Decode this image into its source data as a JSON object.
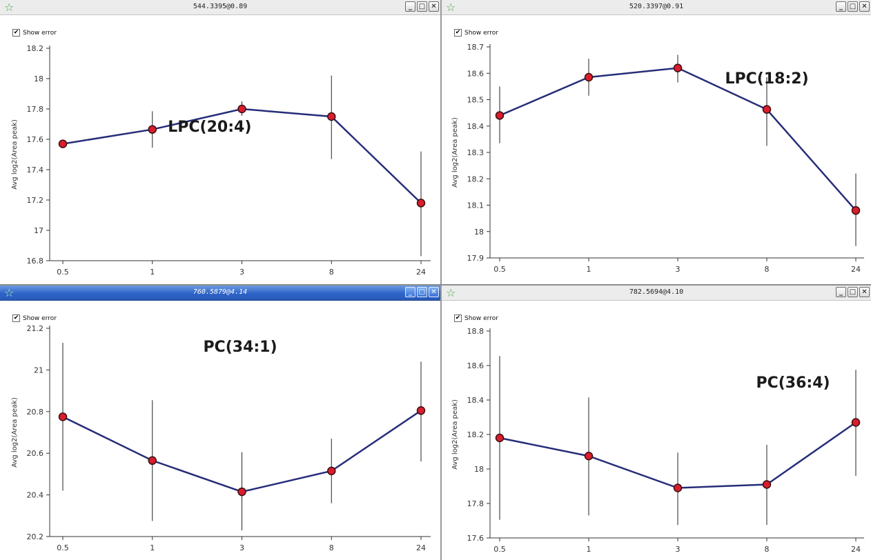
{
  "windows": [
    {
      "title": "544.3395@0.89",
      "active": false,
      "show_error_label": "Show error",
      "show_error_checked": true
    },
    {
      "title": "520.3397@0.91",
      "active": false,
      "show_error_label": "Show error",
      "show_error_checked": true
    },
    {
      "title": "760.5879@4.14",
      "active": true,
      "show_error_label": "Show error",
      "show_error_checked": true
    },
    {
      "title": "782.5694@4.10",
      "active": false,
      "show_error_label": "Show error",
      "show_error_checked": true
    }
  ],
  "window_buttons": {
    "minimize": "_",
    "maximize": "□",
    "close": "✕"
  },
  "colors": {
    "line": "#262d78",
    "marker": "#d81e2c",
    "marker_edge": "#3a0d12",
    "error_bar": "#222222",
    "axis": "#333333"
  },
  "chart_data": [
    {
      "type": "line",
      "annotation": "LPC(20:4)",
      "categories": [
        "0.5",
        "1",
        "3",
        "8",
        "24"
      ],
      "values": [
        17.57,
        17.665,
        17.8,
        17.75,
        17.18
      ],
      "error_low": [
        17.57,
        17.545,
        17.755,
        17.47,
        16.83
      ],
      "error_high": [
        17.57,
        17.785,
        17.85,
        18.02,
        17.52
      ],
      "ylabel": "Avg log2(Area peak)",
      "ylim": [
        16.8,
        18.2
      ],
      "yticks": [
        "16.8",
        "17",
        "17.2",
        "17.4",
        "17.6",
        "17.8",
        "18",
        "18.2"
      ],
      "grid": false
    },
    {
      "type": "line",
      "annotation": "LPC(18:2)",
      "categories": [
        "0.5",
        "1",
        "3",
        "8",
        "24"
      ],
      "values": [
        18.44,
        18.585,
        18.62,
        18.463,
        18.08
      ],
      "error_low": [
        18.335,
        18.515,
        18.565,
        18.325,
        17.945
      ],
      "error_high": [
        18.55,
        18.655,
        18.67,
        18.585,
        18.22
      ],
      "ylabel": "Avg log2(Area peak)",
      "ylim": [
        17.9,
        18.7
      ],
      "yticks": [
        "17.9",
        "18",
        "18.1",
        "18.2",
        "18.3",
        "18.4",
        "18.5",
        "18.6",
        "18.7"
      ],
      "grid": false
    },
    {
      "type": "line",
      "annotation": "PC(34:1)",
      "categories": [
        "0.5",
        "1",
        "3",
        "8",
        "24"
      ],
      "values": [
        20.775,
        20.565,
        20.415,
        20.515,
        20.805
      ],
      "error_low": [
        20.42,
        20.275,
        20.23,
        20.36,
        20.56
      ],
      "error_high": [
        21.13,
        20.855,
        20.605,
        20.67,
        21.04
      ],
      "ylabel": "Avg log2(Area peak)",
      "ylim": [
        20.2,
        21.2
      ],
      "yticks": [
        "20.2",
        "20.4",
        "20.6",
        "20.8",
        "21",
        "21.2"
      ],
      "grid": false
    },
    {
      "type": "line",
      "annotation": "PC(36:4)",
      "categories": [
        "0.5",
        "1",
        "3",
        "8",
        "24"
      ],
      "values": [
        18.18,
        18.075,
        17.89,
        17.91,
        18.27
      ],
      "error_low": [
        17.705,
        17.73,
        17.675,
        17.675,
        17.96
      ],
      "error_high": [
        18.655,
        18.415,
        18.095,
        18.14,
        18.575
      ],
      "ylabel": "Avg log2(Area peak)",
      "ylim": [
        17.6,
        18.8
      ],
      "yticks": [
        "17.6",
        "17.8",
        "18",
        "18.2",
        "18.4",
        "18.6",
        "18.8"
      ],
      "grid": false
    }
  ]
}
